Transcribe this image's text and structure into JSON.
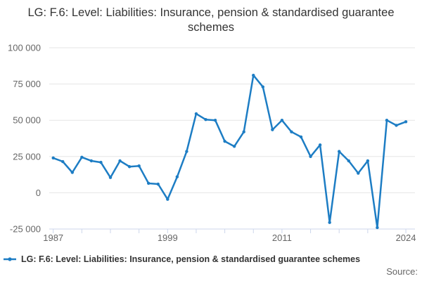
{
  "title": "LG: F.6: Level: Liabilities: Insurance, pension & standardised guarantee schemes",
  "legend": {
    "label": "LG: F.6: Level: Liabilities: Insurance, pension & standardised guarantee schemes",
    "marker": "line-with-dot-icon"
  },
  "source_label": "Source:",
  "colors": {
    "line": "#1d7dc4",
    "grid": "#e6e6e6",
    "axis": "#ccd6eb",
    "axis_label": "#666666",
    "title_text": "#333333",
    "legend_text": "#333333",
    "source_text": "#666666"
  },
  "chart_data": {
    "type": "line",
    "title": "LG: F.6: Level: Liabilities: Insurance, pension & standardised guarantee schemes",
    "x": [
      1987,
      1988,
      1989,
      1990,
      1991,
      1992,
      1993,
      1994,
      1995,
      1996,
      1997,
      1998,
      1999,
      2000,
      2001,
      2002,
      2003,
      2004,
      2005,
      2006,
      2007,
      2008,
      2009,
      2010,
      2011,
      2012,
      2013,
      2014,
      2015,
      2016,
      2017,
      2018,
      2019,
      2020,
      2021,
      2022,
      2023,
      2024
    ],
    "series": [
      {
        "name": "LG: F.6: Level: Liabilities: Insurance, pension & standardised guarantee schemes",
        "values": [
          24000,
          21500,
          14000,
          24500,
          22000,
          21000,
          10500,
          22000,
          18000,
          18500,
          6500,
          6000,
          -4500,
          11000,
          28500,
          54500,
          50500,
          50000,
          35500,
          32000,
          42000,
          81000,
          73000,
          43500,
          50000,
          42000,
          38500,
          25000,
          33000,
          -20500,
          28500,
          22000,
          13500,
          22000,
          -24000,
          50000,
          46500,
          49000
        ]
      }
    ],
    "xlabel": "",
    "ylabel": "",
    "ylim": [
      -25000,
      100000
    ],
    "yticks": [
      -25000,
      0,
      25000,
      50000,
      75000,
      100000
    ],
    "ytick_labels": [
      "-25 000",
      "0",
      "25 000",
      "50 000",
      "75 000",
      "100 000"
    ],
    "xtick_marks": [
      1987,
      1990,
      1993,
      1996,
      1999,
      2002,
      2005,
      2008,
      2011,
      2014,
      2017,
      2020,
      2024
    ],
    "xtick_labels": [
      {
        "year": 1987,
        "label": "1987"
      },
      {
        "year": 1999,
        "label": "1999"
      },
      {
        "year": 2011,
        "label": "2011"
      },
      {
        "year": 2024,
        "label": "2024"
      }
    ],
    "grid": "horizontal-only",
    "legend_position": "bottom-left",
    "marker": "circle"
  }
}
